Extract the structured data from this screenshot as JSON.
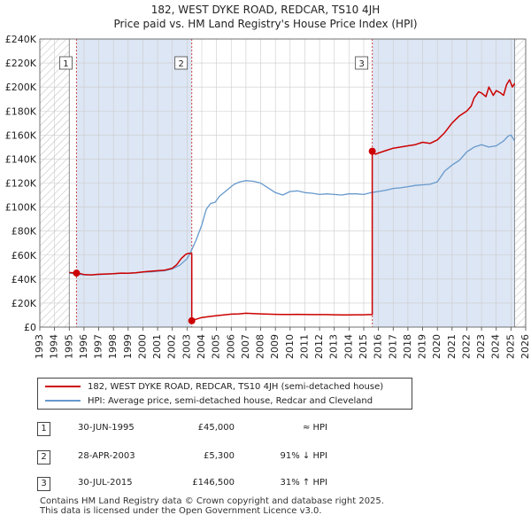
{
  "chart_data": {
    "type": "line",
    "title": "182, WEST DYKE ROAD, REDCAR, TS10 4JH",
    "subtitle": "Price paid vs. HM Land Registry's House Price Index (HPI)",
    "xlim": [
      1993,
      2026
    ],
    "ylim": [
      0,
      240000
    ],
    "xticks": [
      1993,
      1994,
      1995,
      1996,
      1997,
      1998,
      1999,
      2000,
      2001,
      2002,
      2003,
      2004,
      2005,
      2006,
      2007,
      2008,
      2009,
      2010,
      2011,
      2012,
      2013,
      2014,
      2015,
      2016,
      2017,
      2018,
      2019,
      2020,
      2021,
      2022,
      2023,
      2024,
      2025,
      2026
    ],
    "yticks": [
      0,
      20000,
      40000,
      60000,
      80000,
      100000,
      120000,
      140000,
      160000,
      180000,
      200000,
      220000,
      240000
    ],
    "ytick_labels": [
      "£0",
      "£20K",
      "£40K",
      "£60K",
      "£80K",
      "£100K",
      "£120K",
      "£140K",
      "£160K",
      "£180K",
      "£200K",
      "£220K",
      "£240K"
    ],
    "grid": true,
    "data_start": 1995.0,
    "data_end": 2025.25,
    "series": [
      {
        "name": "182, WEST DYKE ROAD, REDCAR, TS10 4JH (semi-detached house)",
        "color": "#cc0000",
        "x": [
          1995.0,
          1995.49,
          1995.49,
          1995.75,
          1996.0,
          1996.5,
          1997.0,
          1997.5,
          1998.0,
          1998.5,
          1999.0,
          1999.5,
          2000.0,
          2000.5,
          2001.0,
          2001.5,
          2002.0,
          2002.3,
          2002.6,
          2002.9,
          2003.1,
          2003.32,
          2003.32,
          2003.6,
          2004.0,
          2004.5,
          2005.0,
          2005.5,
          2006.0,
          2006.5,
          2007.0,
          2007.5,
          2008.0,
          2008.5,
          2009.0,
          2009.5,
          2010.0,
          2010.5,
          2011.0,
          2011.5,
          2012.0,
          2012.5,
          2013.0,
          2013.5,
          2014.0,
          2014.5,
          2015.0,
          2015.3,
          2015.58,
          2015.58,
          2015.8,
          2016.0,
          2016.5,
          2017.0,
          2017.5,
          2018.0,
          2018.5,
          2019.0,
          2019.5,
          2020.0,
          2020.5,
          2021.0,
          2021.5,
          2022.0,
          2022.3,
          2022.5,
          2022.8,
          2023.0,
          2023.3,
          2023.5,
          2023.8,
          2024.0,
          2024.3,
          2024.5,
          2024.7,
          2024.9,
          2025.1,
          2025.25
        ],
        "values": [
          45500,
          45000,
          45000,
          44500,
          43800,
          43500,
          44000,
          44200,
          44500,
          45000,
          44800,
          45200,
          46000,
          46500,
          47000,
          47500,
          49000,
          52000,
          57000,
          60500,
          61500,
          61000,
          5300,
          6500,
          8000,
          8800,
          9500,
          10200,
          10800,
          11000,
          11500,
          11200,
          11000,
          10800,
          10600,
          10500,
          10500,
          10600,
          10500,
          10400,
          10400,
          10400,
          10300,
          10200,
          10200,
          10300,
          10300,
          10400,
          10400,
          146500,
          144000,
          145000,
          147000,
          149000,
          150000,
          151000,
          152000,
          154000,
          153000,
          156000,
          162000,
          170000,
          176000,
          180000,
          184000,
          191000,
          196000,
          195000,
          192000,
          200000,
          193000,
          197000,
          195000,
          193000,
          202000,
          206000,
          200000,
          203000
        ]
      },
      {
        "name": "HPI: Average price, semi-detached house, Redcar and Cleveland",
        "color": "#6699cc",
        "x": [
          1995.0,
          1995.5,
          1996.0,
          1996.5,
          1997.0,
          1997.5,
          1998.0,
          1998.5,
          1999.0,
          1999.5,
          2000.0,
          2000.5,
          2001.0,
          2001.5,
          2002.0,
          2002.5,
          2003.0,
          2003.3,
          2003.6,
          2004.0,
          2004.3,
          2004.6,
          2004.9,
          2005.2,
          2005.5,
          2005.8,
          2006.2,
          2006.6,
          2007.0,
          2007.5,
          2008.0,
          2008.5,
          2009.0,
          2009.5,
          2010.0,
          2010.5,
          2011.0,
          2011.5,
          2012.0,
          2012.5,
          2013.0,
          2013.5,
          2014.0,
          2014.5,
          2015.0,
          2015.5,
          2016.0,
          2016.5,
          2017.0,
          2017.5,
          2018.0,
          2018.5,
          2019.0,
          2019.5,
          2020.0,
          2020.5,
          2021.0,
          2021.5,
          2022.0,
          2022.5,
          2023.0,
          2023.5,
          2024.0,
          2024.5,
          2024.8,
          2025.0,
          2025.25
        ],
        "values": [
          45000,
          44200,
          43500,
          43500,
          43800,
          44000,
          44500,
          44800,
          45000,
          45200,
          45800,
          46000,
          46500,
          47000,
          48500,
          51500,
          57000,
          64000,
          72000,
          85000,
          98000,
          103000,
          104000,
          109000,
          112000,
          115000,
          119000,
          121000,
          122000,
          121500,
          120000,
          116000,
          112000,
          110000,
          113000,
          113500,
          112000,
          111500,
          110500,
          111000,
          110500,
          110000,
          111000,
          111000,
          110500,
          112000,
          113000,
          114000,
          115500,
          116000,
          117000,
          118000,
          118500,
          119000,
          121000,
          130000,
          135000,
          139000,
          146000,
          150000,
          152000,
          150000,
          151000,
          155000,
          159000,
          160000,
          155000
        ]
      }
    ],
    "transactions": [
      {
        "label": "1",
        "x": 1995.49,
        "price": 45000
      },
      {
        "label": "2",
        "x": 2003.32,
        "price": 5300
      },
      {
        "label": "3",
        "x": 2015.58,
        "price": 146500
      }
    ]
  },
  "legend": {
    "property_label": "182, WEST DYKE ROAD, REDCAR, TS10 4JH (semi-detached house)",
    "hpi_label": "HPI: Average price, semi-detached house, Redcar and Cleveland",
    "property_color": "#cc0000",
    "hpi_color": "#6699cc"
  },
  "sales": [
    {
      "num": "1",
      "date": "30-JUN-1995",
      "price": "£45,000",
      "hpi": "≈ HPI"
    },
    {
      "num": "2",
      "date": "28-APR-2003",
      "price": "£5,300",
      "hpi": "91% ↓ HPI"
    },
    {
      "num": "3",
      "date": "30-JUL-2015",
      "price": "£146,500",
      "hpi": "31% ↑ HPI"
    }
  ],
  "footer": {
    "line1": "Contains HM Land Registry data © Crown copyright and database right 2025.",
    "line2": "This data is licensed under the Open Government Licence v3.0."
  },
  "colors": {
    "shade": "#dde6f4",
    "hatch": "#bbbbbb",
    "grid": "#cccccc",
    "vline": "#cc4444"
  }
}
